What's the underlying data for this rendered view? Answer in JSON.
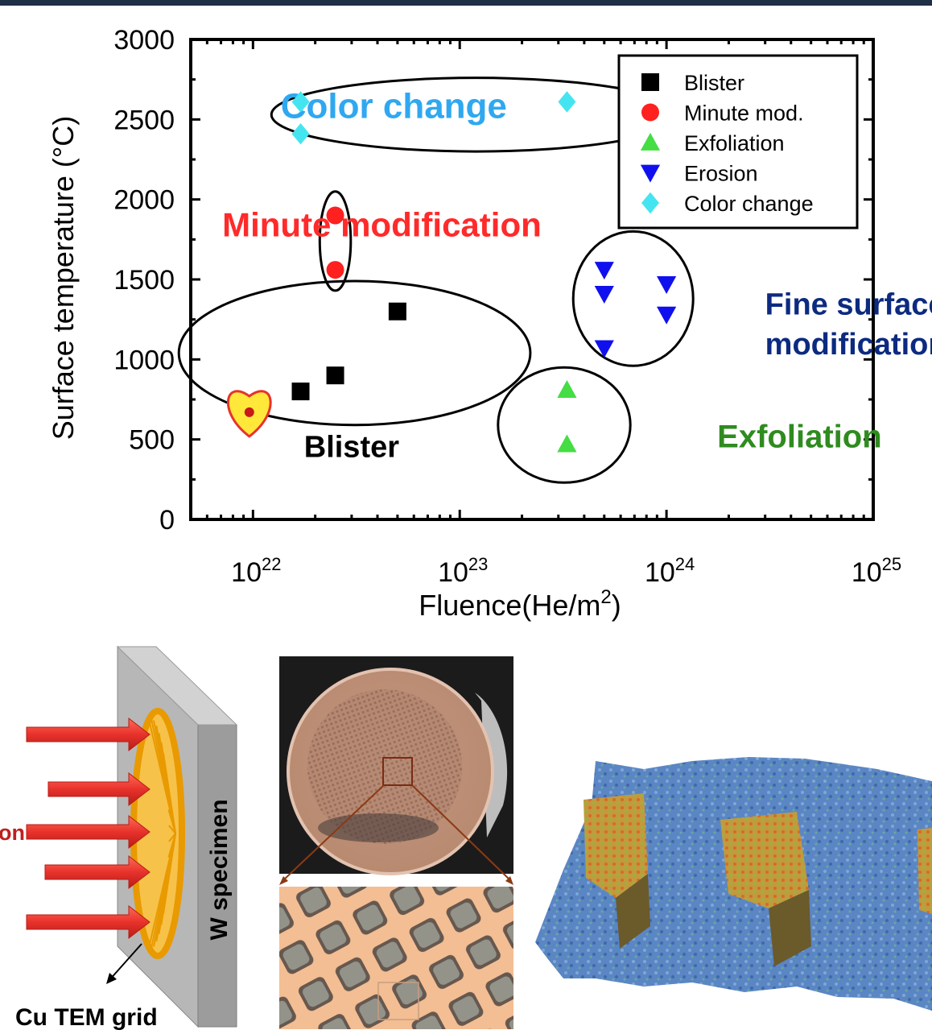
{
  "chart_data": {
    "type": "scatter",
    "xscale": "log",
    "xlim": [
      5e+21,
      1e+25
    ],
    "ylim": [
      0,
      3000
    ],
    "xlabel": "Fluence(He/m²)",
    "ylabel": "Surface temperature (°C)",
    "x_ticks": [
      {
        "value": 1e+22,
        "base": "10",
        "exp": "22"
      },
      {
        "value": 1e+23,
        "base": "10",
        "exp": "23"
      },
      {
        "value": 1e+24,
        "base": "10",
        "exp": "24"
      },
      {
        "value": 1e+25,
        "base": "10",
        "exp": "25"
      }
    ],
    "y_ticks": [
      0,
      500,
      1000,
      1500,
      2000,
      2500,
      3000
    ],
    "legend_position": "top-right",
    "series": [
      {
        "name": "Blister",
        "marker": "square",
        "color": "#000000",
        "points": [
          [
            1.7e+22,
            800
          ],
          [
            2.5e+22,
            900
          ],
          [
            5e+22,
            1300
          ]
        ]
      },
      {
        "name": "Minute mod.",
        "marker": "circle",
        "color": "#ff2020",
        "points": [
          [
            2.5e+22,
            1900
          ],
          [
            2.5e+22,
            1560
          ]
        ]
      },
      {
        "name": "Exfoliation",
        "marker": "triangle-up",
        "color": "#44dd44",
        "points": [
          [
            3.3e+23,
            810
          ],
          [
            3.3e+23,
            470
          ]
        ]
      },
      {
        "name": "Erosion",
        "marker": "triangle-down",
        "color": "#1010ee",
        "points": [
          [
            5e+23,
            1560
          ],
          [
            5e+23,
            1410
          ],
          [
            5e+23,
            1070
          ],
          [
            1e+24,
            1470
          ],
          [
            1e+24,
            1280
          ]
        ]
      },
      {
        "name": "Color change",
        "marker": "diamond",
        "color": "#44e5f0",
        "points": [
          [
            1.7e+22,
            2610
          ],
          [
            1.7e+22,
            2410
          ],
          [
            3.3e+23,
            2610
          ]
        ]
      }
    ],
    "regions": [
      {
        "label": "Color change",
        "color": "#2fa8f0",
        "cx": 1.2e+23,
        "cy": 2530,
        "rx_dex": 0.99,
        "ry": 230,
        "label_x": 4.8e+22,
        "label_y": 2510,
        "size": 44
      },
      {
        "label": "Minute modification",
        "color": "#ff2a2a",
        "cx": 2.5e+22,
        "cy": 1740,
        "rx_dex": 0.075,
        "ry": 310,
        "label_x": 4.2e+22,
        "label_y": 1770,
        "size": 42
      },
      {
        "label": "Blister",
        "color": "#000000",
        "cx": 3.1e+22,
        "cy": 1040,
        "rx_dex": 0.85,
        "ry": 450,
        "label_x": 3e+22,
        "label_y": 390,
        "size": 38
      },
      {
        "label": "Exfoliation",
        "color": "#2f8b1f",
        "cx": 3.2e+23,
        "cy": 590,
        "rx_dex": 0.32,
        "ry": 360,
        "label_x": 4.4e+24,
        "label_y": 450,
        "size": 40
      },
      {
        "label": "Fine surface\nmodification",
        "color": "#0c2a80",
        "cx": 6.9e+23,
        "cy": 1380,
        "rx_dex": 0.29,
        "ry": 420,
        "label_x": 3e+24,
        "label_y": 1280,
        "size": 38
      }
    ],
    "heart_point": [
      9.6e+21,
      670
    ]
  },
  "figures": {
    "beam_label": "on",
    "specimen_label": "W specimen",
    "grid_label": "Cu TEM grid"
  },
  "colors": {
    "arrow": "#e8322c",
    "grid_ring": "#f0a800",
    "plate": "#a9a9a9",
    "copper": "#c58b6f"
  }
}
